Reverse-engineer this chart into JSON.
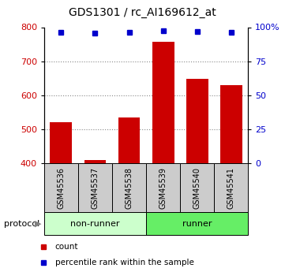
{
  "title": "GDS1301 / rc_AI169612_at",
  "categories": [
    "GSM45536",
    "GSM45537",
    "GSM45538",
    "GSM45539",
    "GSM45540",
    "GSM45541"
  ],
  "bar_values": [
    520,
    410,
    535,
    757,
    648,
    630
  ],
  "percentile_values": [
    96.5,
    95.5,
    96.5,
    97.5,
    97.0,
    96.5
  ],
  "bar_color": "#cc0000",
  "dot_color": "#0000cc",
  "ylim_left": [
    400,
    800
  ],
  "ylim_right": [
    0,
    100
  ],
  "yticks_left": [
    400,
    500,
    600,
    700,
    800
  ],
  "yticks_right": [
    0,
    25,
    50,
    75,
    100
  ],
  "yticklabels_right": [
    "0",
    "25",
    "50",
    "75",
    "100%"
  ],
  "groups": [
    {
      "label": "non-runner",
      "start": 0,
      "end": 3,
      "color": "#ccffcc"
    },
    {
      "label": "runner",
      "start": 3,
      "end": 6,
      "color": "#66ee66"
    }
  ],
  "protocol_label": "protocol",
  "legend_items": [
    {
      "label": "count",
      "color": "#cc0000"
    },
    {
      "label": "percentile rank within the sample",
      "color": "#0000cc"
    }
  ],
  "grid_color": "#888888",
  "tick_label_color_left": "#cc0000",
  "tick_label_color_right": "#0000cc",
  "bar_bottom": 400,
  "background_plot": "#ffffff",
  "label_area_color": "#cccccc",
  "fig_width": 3.61,
  "fig_height": 3.45,
  "dpi": 100
}
